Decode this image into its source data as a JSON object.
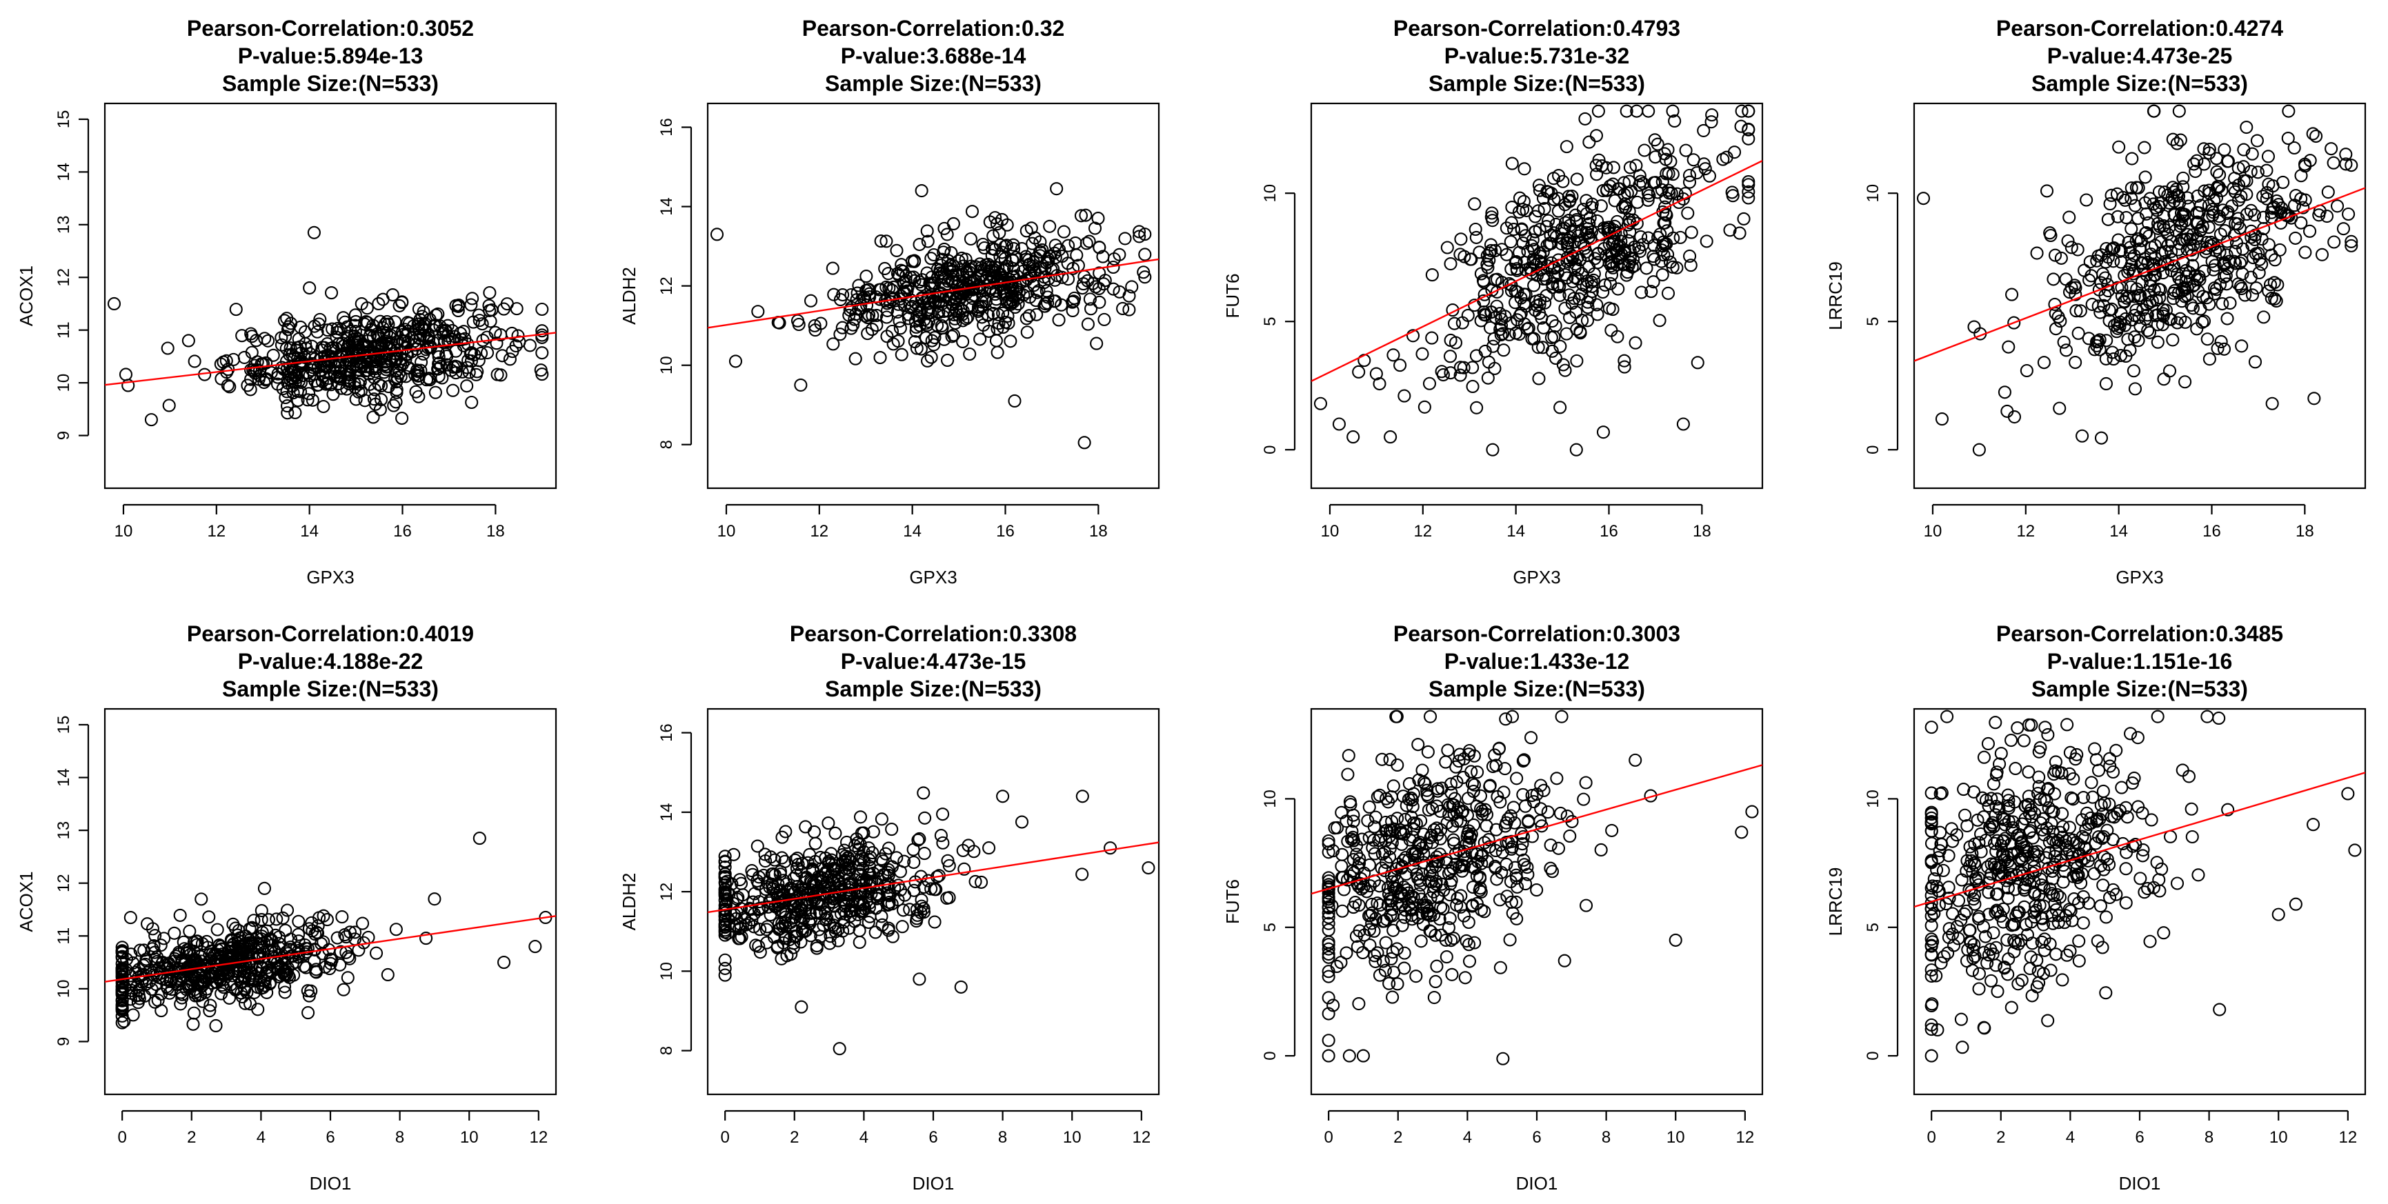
{
  "chart_data": [
    {
      "type": "scatter",
      "title_lines": [
        "Pearson-Correlation:0.3052",
        "P-value:5.894e-13",
        "Sample Size:(N=533)"
      ],
      "xlabel": "GPX3",
      "ylabel": "ACOX1",
      "xlim": [
        9.6,
        19.3
      ],
      "ylim": [
        8.0,
        15.3
      ],
      "xticks": [
        10,
        12,
        14,
        16,
        18
      ],
      "yticks": [
        9,
        10,
        11,
        12,
        13,
        14,
        15
      ],
      "x_mean": 15.3,
      "x_sd": 1.5,
      "x_min": 9.8,
      "x_max": 19.0,
      "y_at_xmin": 9.98,
      "y_at_xmax": 10.92,
      "resid_sd": 0.42,
      "sample_size": 533,
      "outliers": [
        [
          9.8,
          11.5
        ],
        [
          10.1,
          9.95
        ],
        [
          10.6,
          9.3
        ],
        [
          11.4,
          10.8
        ],
        [
          14.1,
          12.85
        ],
        [
          14.0,
          11.8
        ],
        [
          17.5,
          11.6
        ],
        [
          14.3,
          9.55
        ]
      ]
    },
    {
      "type": "scatter",
      "title_lines": [
        "Pearson-Correlation:0.32",
        "P-value:3.688e-14",
        "Sample Size:(N=533)"
      ],
      "xlabel": "GPX3",
      "ylabel": "ALDH2",
      "xlim": [
        9.6,
        19.3
      ],
      "ylim": [
        6.9,
        16.6
      ],
      "xticks": [
        10,
        12,
        14,
        16,
        18
      ],
      "yticks": [
        8,
        10,
        12,
        14,
        16
      ],
      "x_mean": 15.3,
      "x_sd": 1.5,
      "x_min": 9.8,
      "x_max": 19.0,
      "y_at_xmin": 10.98,
      "y_at_xmax": 12.62,
      "resid_sd": 0.65,
      "sample_size": 533,
      "outliers": [
        [
          9.8,
          13.3
        ],
        [
          10.2,
          10.1
        ],
        [
          14.2,
          14.4
        ],
        [
          17.1,
          14.45
        ],
        [
          17.7,
          8.05
        ],
        [
          16.2,
          9.1
        ],
        [
          11.6,
          9.5
        ]
      ]
    },
    {
      "type": "scatter",
      "title_lines": [
        "Pearson-Correlation:0.4793",
        "P-value:5.731e-32",
        "Sample Size:(N=533)"
      ],
      "xlabel": "GPX3",
      "ylabel": "FUT6",
      "xlim": [
        9.6,
        19.3
      ],
      "ylim": [
        -1.5,
        13.5
      ],
      "xticks": [
        10,
        12,
        14,
        16,
        18
      ],
      "yticks": [
        0,
        5,
        10
      ],
      "x_mean": 15.3,
      "x_sd": 1.5,
      "x_min": 9.8,
      "x_max": 19.0,
      "y_at_xmin": 2.85,
      "y_at_xmax": 11.0,
      "resid_sd": 1.9,
      "sample_size": 533,
      "outliers": [
        [
          9.8,
          1.8
        ],
        [
          10.2,
          1.0
        ],
        [
          10.5,
          0.5
        ],
        [
          11.3,
          0.5
        ],
        [
          11.6,
          2.1
        ],
        [
          13.5,
          0.0
        ],
        [
          15.3,
          0.0
        ],
        [
          18.7,
          11.6
        ],
        [
          18.9,
          9.0
        ],
        [
          17.6,
          1.0
        ]
      ]
    },
    {
      "type": "scatter",
      "title_lines": [
        "Pearson-Correlation:0.4274",
        "P-value:4.473e-25",
        "Sample Size:(N=533)"
      ],
      "xlabel": "GPX3",
      "ylabel": "LRRC19",
      "xlim": [
        9.6,
        19.3
      ],
      "ylim": [
        -1.5,
        13.5
      ],
      "xticks": [
        10,
        12,
        14,
        16,
        18
      ],
      "yticks": [
        0,
        5,
        10
      ],
      "x_mean": 15.3,
      "x_sd": 1.5,
      "x_min": 9.8,
      "x_max": 19.0,
      "y_at_xmin": 3.6,
      "y_at_xmax": 10.0,
      "resid_sd": 2.0,
      "sample_size": 533,
      "outliers": [
        [
          9.8,
          9.8
        ],
        [
          10.2,
          1.2
        ],
        [
          11.0,
          0.0
        ],
        [
          11.6,
          1.5
        ],
        [
          14.0,
          11.8
        ],
        [
          17.3,
          1.8
        ],
        [
          18.2,
          2.0
        ],
        [
          18.7,
          9.5
        ]
      ]
    },
    {
      "type": "scatter",
      "title_lines": [
        "Pearson-Correlation:0.4019",
        "P-value:4.188e-22",
        "Sample Size:(N=533)"
      ],
      "xlabel": "DIO1",
      "ylabel": "ACOX1",
      "xlim": [
        -0.5,
        12.5
      ],
      "ylim": [
        8.0,
        15.3
      ],
      "xticks": [
        0,
        2,
        4,
        6,
        8,
        10,
        12
      ],
      "yticks": [
        9,
        10,
        11,
        12,
        13,
        14,
        15
      ],
      "x_mean": 2.9,
      "x_sd": 1.9,
      "x_min": 0.0,
      "x_max": 12.2,
      "y_at_xmin": 10.18,
      "y_at_xmax": 11.35,
      "resid_sd": 0.38,
      "sample_size": 533,
      "outliers": [
        [
          10.3,
          12.85
        ],
        [
          11.0,
          10.5
        ],
        [
          12.2,
          11.35
        ],
        [
          2.7,
          9.3
        ],
        [
          4.1,
          11.9
        ],
        [
          9.0,
          11.7
        ],
        [
          11.9,
          10.8
        ]
      ]
    },
    {
      "type": "scatter",
      "title_lines": [
        "Pearson-Correlation:0.3308",
        "P-value:4.473e-15",
        "Sample Size:(N=533)"
      ],
      "xlabel": "DIO1",
      "ylabel": "ALDH2",
      "xlim": [
        -0.5,
        12.5
      ],
      "ylim": [
        6.9,
        16.6
      ],
      "xticks": [
        0,
        2,
        4,
        6,
        8,
        10,
        12
      ],
      "yticks": [
        8,
        10,
        12,
        14,
        16
      ],
      "x_mean": 2.9,
      "x_sd": 1.9,
      "x_min": 0.0,
      "x_max": 12.2,
      "y_at_xmin": 11.55,
      "y_at_xmax": 13.2,
      "resid_sd": 0.7,
      "sample_size": 533,
      "outliers": [
        [
          3.3,
          8.05
        ],
        [
          8.0,
          14.4
        ],
        [
          10.3,
          14.4
        ],
        [
          11.1,
          13.1
        ],
        [
          12.2,
          12.6
        ],
        [
          6.8,
          9.6
        ],
        [
          2.2,
          9.1
        ],
        [
          5.6,
          9.8
        ]
      ]
    },
    {
      "type": "scatter",
      "title_lines": [
        "Pearson-Correlation:0.3003",
        "P-value:1.433e-12",
        "Sample Size:(N=533)"
      ],
      "xlabel": "DIO1",
      "ylabel": "FUT6",
      "xlim": [
        -0.5,
        12.5
      ],
      "ylim": [
        -1.5,
        13.5
      ],
      "xticks": [
        0,
        2,
        4,
        6,
        8,
        10,
        12
      ],
      "yticks": [
        0,
        5,
        10
      ],
      "x_mean": 2.9,
      "x_sd": 1.9,
      "x_min": 0.0,
      "x_max": 12.2,
      "y_at_xmin": 6.5,
      "y_at_xmax": 11.2,
      "resid_sd": 2.2,
      "sample_size": 533,
      "outliers": [
        [
          0.0,
          0.0
        ],
        [
          0.0,
          0.6
        ],
        [
          0.6,
          0.0
        ],
        [
          1.0,
          0.0
        ],
        [
          10.0,
          4.5
        ],
        [
          12.2,
          9.5
        ],
        [
          11.9,
          8.7
        ],
        [
          6.8,
          3.7
        ]
      ]
    },
    {
      "type": "scatter",
      "title_lines": [
        "Pearson-Correlation:0.3485",
        "P-value:1.151e-16",
        "Sample Size:(N=533)"
      ],
      "xlabel": "DIO1",
      "ylabel": "LRRC19",
      "xlim": [
        -0.5,
        12.5
      ],
      "ylim": [
        -1.5,
        13.5
      ],
      "xticks": [
        0,
        2,
        4,
        6,
        8,
        10,
        12
      ],
      "yticks": [
        0,
        5,
        10
      ],
      "x_mean": 2.9,
      "x_sd": 1.9,
      "x_min": 0.0,
      "x_max": 12.2,
      "y_at_xmin": 6.0,
      "y_at_xmax": 10.9,
      "resid_sd": 2.3,
      "sample_size": 533,
      "outliers": [
        [
          0.0,
          0.0
        ],
        [
          0.0,
          1.2
        ],
        [
          4.0,
          11.8
        ],
        [
          10.0,
          5.5
        ],
        [
          10.5,
          5.9
        ],
        [
          11.0,
          9.0
        ],
        [
          12.0,
          10.2
        ],
        [
          12.2,
          8.0
        ],
        [
          8.3,
          1.8
        ]
      ]
    }
  ]
}
